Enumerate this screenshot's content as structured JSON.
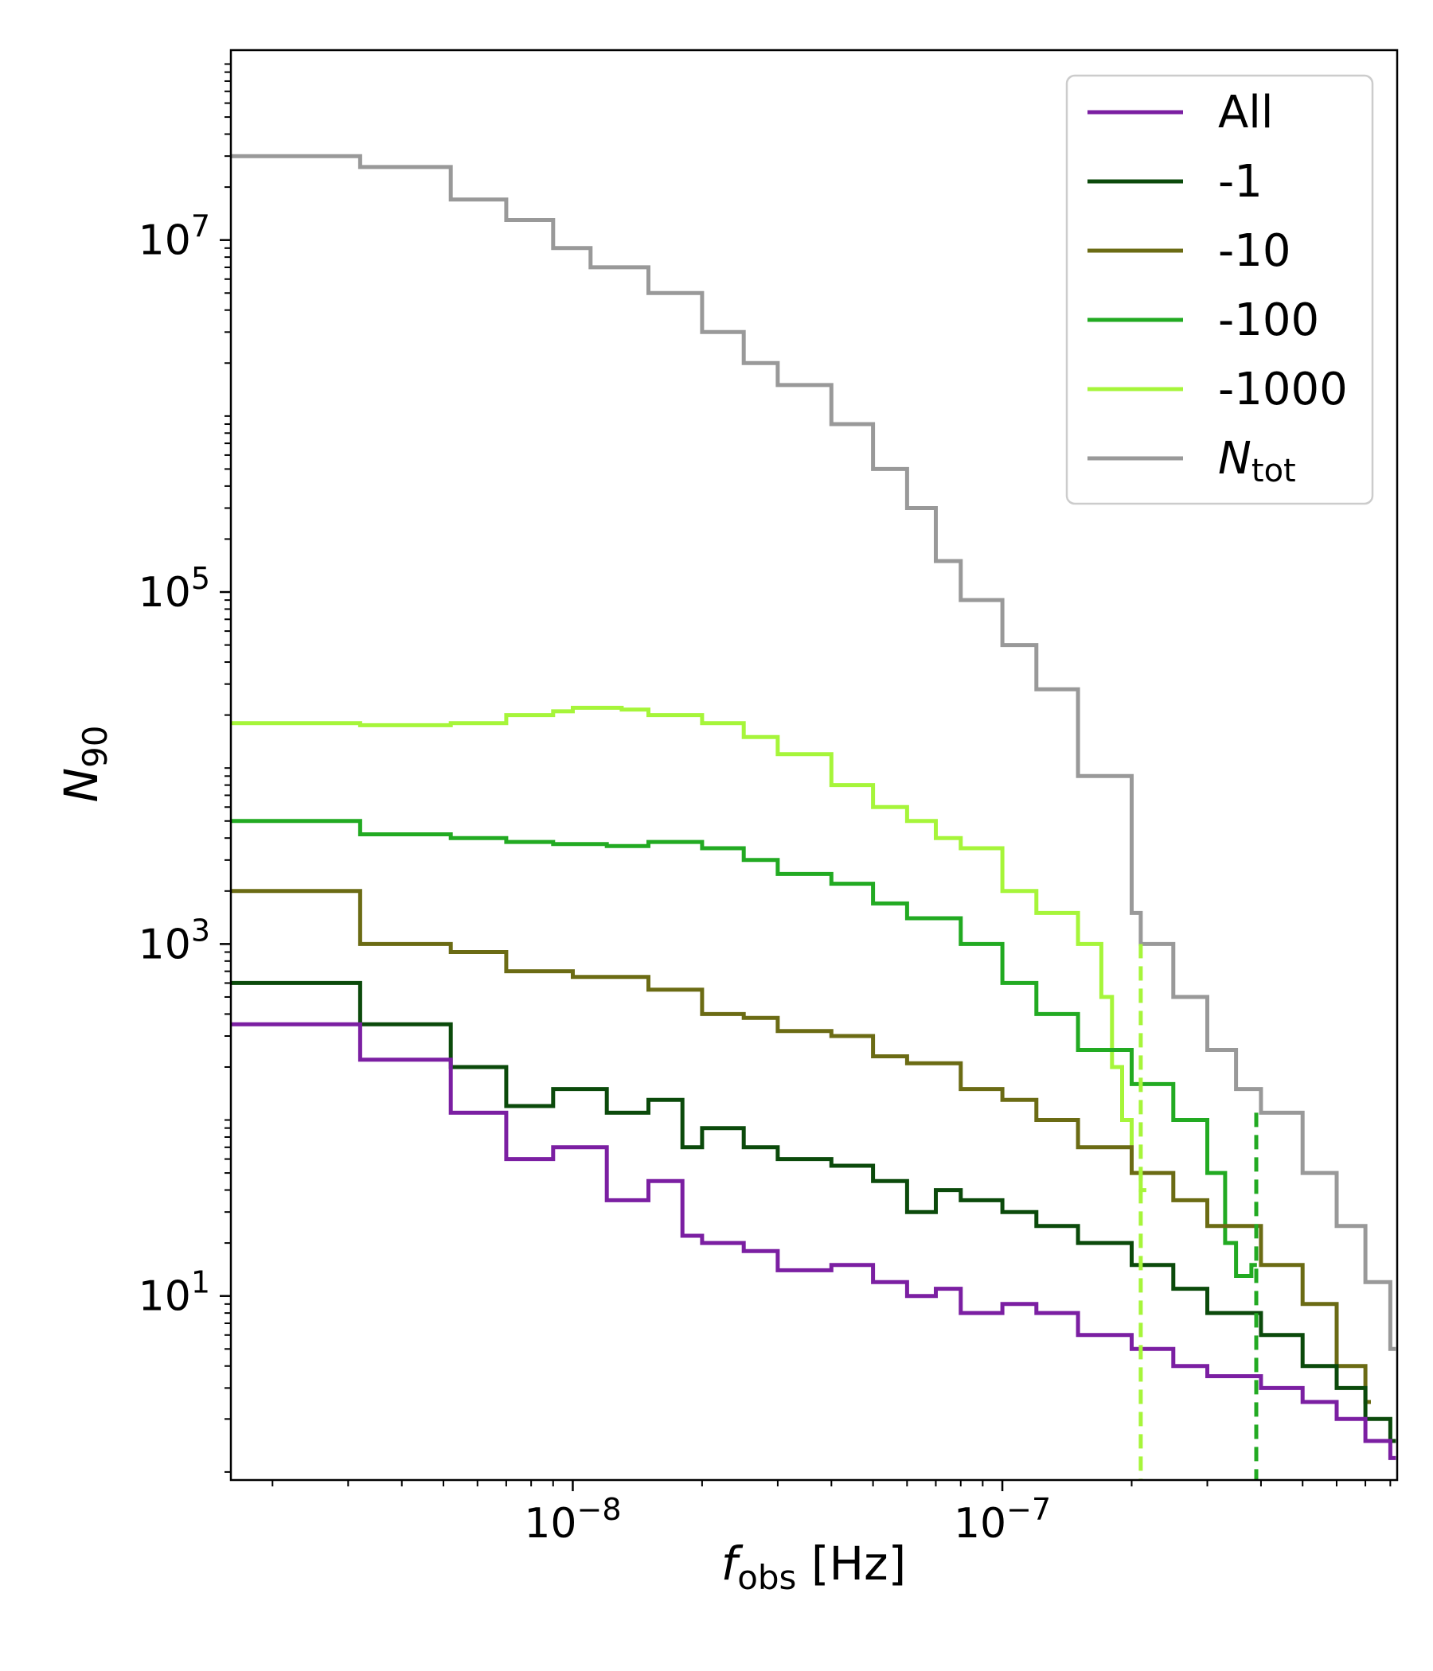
{
  "chart_data": {
    "type": "line",
    "title": "",
    "xlabel": "f",
    "xlabel_sub": "obs",
    "xlabel_unit": " [Hz]",
    "ylabel": "N",
    "ylabel_sub": "90",
    "xscale": "log",
    "yscale": "log",
    "xlim": [
      1.6e-09,
      8.3e-07
    ],
    "ylim": [
      0.9,
      120000000
    ],
    "x_ticks": [
      {
        "value": 1e-08,
        "base": "10",
        "exp": "−8"
      },
      {
        "value": 1e-07,
        "base": "10",
        "exp": "−7"
      }
    ],
    "y_ticks": [
      {
        "value": 10,
        "base": "10",
        "exp": "1"
      },
      {
        "value": 1000,
        "base": "10",
        "exp": "3"
      },
      {
        "value": 100000,
        "base": "10",
        "exp": "5"
      },
      {
        "value": 10000000,
        "base": "10",
        "exp": "7"
      }
    ],
    "grid": false,
    "legend_position": "top-right",
    "legend": [
      {
        "label": "All",
        "color": "#7b1fa2"
      },
      {
        "label": "-1",
        "color": "#0b4a0b"
      },
      {
        "label": "-10",
        "color": "#6b6b14"
      },
      {
        "label": "-100",
        "color": "#22aa22"
      },
      {
        "label": "-1000",
        "color": "#a6f53a"
      },
      {
        "label": "N",
        "label_sub": "tot",
        "color": "#999999"
      }
    ],
    "series": [
      {
        "name": "N_tot",
        "color": "#999999",
        "points": [
          [
            1.6e-09,
            30000000
          ],
          [
            3.2e-09,
            26000000
          ],
          [
            5.2e-09,
            17000000
          ],
          [
            7e-09,
            13000000
          ],
          [
            9e-09,
            9000000
          ],
          [
            1.1e-08,
            7000000
          ],
          [
            1.5e-08,
            5000000
          ],
          [
            2e-08,
            3000000
          ],
          [
            2.5e-08,
            2000000
          ],
          [
            3e-08,
            1500000
          ],
          [
            4e-08,
            900000
          ],
          [
            5e-08,
            500000
          ],
          [
            6e-08,
            300000
          ],
          [
            7e-08,
            150000
          ],
          [
            8e-08,
            90000
          ],
          [
            1e-07,
            50000
          ],
          [
            1.2e-07,
            28000
          ],
          [
            1.5e-07,
            9000
          ],
          [
            2e-07,
            1500
          ],
          [
            2.1e-07,
            1000
          ],
          [
            2.5e-07,
            500
          ],
          [
            3e-07,
            250
          ],
          [
            3.5e-07,
            150
          ],
          [
            4e-07,
            110
          ],
          [
            5e-07,
            50
          ],
          [
            6e-07,
            25
          ],
          [
            7e-07,
            12
          ],
          [
            8e-07,
            5
          ]
        ]
      },
      {
        "name": "-1000",
        "color": "#a6f53a",
        "points": [
          [
            1.6e-09,
            18000
          ],
          [
            3.2e-09,
            17500
          ],
          [
            5.2e-09,
            18000
          ],
          [
            7e-09,
            20000
          ],
          [
            9e-09,
            21000
          ],
          [
            1e-08,
            22000
          ],
          [
            1.3e-08,
            21500
          ],
          [
            1.5e-08,
            20000
          ],
          [
            2e-08,
            18000
          ],
          [
            2.5e-08,
            15000
          ],
          [
            3e-08,
            12000
          ],
          [
            4e-08,
            8000
          ],
          [
            5e-08,
            6000
          ],
          [
            6e-08,
            5000
          ],
          [
            7e-08,
            4000
          ],
          [
            8e-08,
            3500
          ],
          [
            1e-07,
            2000
          ],
          [
            1.2e-07,
            1500
          ],
          [
            1.5e-07,
            1000
          ],
          [
            1.7e-07,
            500
          ],
          [
            1.8e-07,
            200
          ],
          [
            1.9e-07,
            100
          ],
          [
            2e-07,
            50
          ],
          [
            2.1e-07,
            40
          ]
        ]
      },
      {
        "name": "-100",
        "color": "#22aa22",
        "points": [
          [
            1.6e-09,
            5000
          ],
          [
            3.2e-09,
            4200
          ],
          [
            5.2e-09,
            4000
          ],
          [
            7e-09,
            3800
          ],
          [
            9e-09,
            3700
          ],
          [
            1.2e-08,
            3600
          ],
          [
            1.5e-08,
            3800
          ],
          [
            2e-08,
            3500
          ],
          [
            2.5e-08,
            3000
          ],
          [
            3e-08,
            2500
          ],
          [
            4e-08,
            2200
          ],
          [
            5e-08,
            1700
          ],
          [
            6e-08,
            1400
          ],
          [
            8e-08,
            1000
          ],
          [
            1e-07,
            600
          ],
          [
            1.2e-07,
            400
          ],
          [
            1.5e-07,
            250
          ],
          [
            2e-07,
            160
          ],
          [
            2.5e-07,
            100
          ],
          [
            3e-07,
            50
          ],
          [
            3.3e-07,
            20
          ],
          [
            3.5e-07,
            13
          ],
          [
            3.8e-07,
            15
          ]
        ]
      },
      {
        "name": "-10",
        "color": "#6b6b14",
        "points": [
          [
            1.6e-09,
            2000
          ],
          [
            3.2e-09,
            1000
          ],
          [
            5.2e-09,
            900
          ],
          [
            7e-09,
            700
          ],
          [
            1e-08,
            650
          ],
          [
            1.5e-08,
            550
          ],
          [
            2e-08,
            400
          ],
          [
            2.5e-08,
            380
          ],
          [
            3e-08,
            320
          ],
          [
            4e-08,
            300
          ],
          [
            5e-08,
            230
          ],
          [
            6e-08,
            210
          ],
          [
            8e-08,
            150
          ],
          [
            1e-07,
            130
          ],
          [
            1.2e-07,
            100
          ],
          [
            1.5e-07,
            70
          ],
          [
            2e-07,
            50
          ],
          [
            2.5e-07,
            35
          ],
          [
            3e-07,
            25
          ],
          [
            4e-07,
            15
          ],
          [
            5e-07,
            9
          ],
          [
            6e-07,
            4
          ],
          [
            7e-07,
            2.5
          ]
        ]
      },
      {
        "name": "-1",
        "color": "#0b4a0b",
        "points": [
          [
            1.6e-09,
            600
          ],
          [
            3.2e-09,
            350
          ],
          [
            5.2e-09,
            200
          ],
          [
            7e-09,
            120
          ],
          [
            9e-09,
            150
          ],
          [
            1.2e-08,
            110
          ],
          [
            1.5e-08,
            130
          ],
          [
            1.8e-08,
            70
          ],
          [
            2e-08,
            90
          ],
          [
            2.5e-08,
            70
          ],
          [
            3e-08,
            60
          ],
          [
            4e-08,
            55
          ],
          [
            5e-08,
            45
          ],
          [
            6e-08,
            30
          ],
          [
            7e-08,
            40
          ],
          [
            8e-08,
            35
          ],
          [
            1e-07,
            30
          ],
          [
            1.2e-07,
            25
          ],
          [
            1.5e-07,
            20
          ],
          [
            2e-07,
            15
          ],
          [
            2.5e-07,
            11
          ],
          [
            3e-07,
            8
          ],
          [
            4e-07,
            6
          ],
          [
            5e-07,
            4
          ],
          [
            6e-07,
            3
          ],
          [
            7e-07,
            2
          ],
          [
            8e-07,
            1.5
          ]
        ]
      },
      {
        "name": "All",
        "color": "#7b1fa2",
        "points": [
          [
            1.6e-09,
            350
          ],
          [
            3.2e-09,
            220
          ],
          [
            5.2e-09,
            110
          ],
          [
            7e-09,
            60
          ],
          [
            9e-09,
            70
          ],
          [
            1.2e-08,
            35
          ],
          [
            1.5e-08,
            45
          ],
          [
            1.8e-08,
            22
          ],
          [
            2e-08,
            20
          ],
          [
            2.5e-08,
            18
          ],
          [
            3e-08,
            14
          ],
          [
            4e-08,
            15
          ],
          [
            5e-08,
            12
          ],
          [
            6e-08,
            10
          ],
          [
            7e-08,
            11
          ],
          [
            8e-08,
            8
          ],
          [
            1e-07,
            9
          ],
          [
            1.2e-07,
            8
          ],
          [
            1.5e-07,
            6
          ],
          [
            2e-07,
            5
          ],
          [
            2.5e-07,
            4
          ],
          [
            3e-07,
            3.5
          ],
          [
            4e-07,
            3
          ],
          [
            5e-07,
            2.5
          ],
          [
            6e-07,
            2
          ],
          [
            7e-07,
            1.5
          ],
          [
            8e-07,
            1.2
          ]
        ]
      }
    ],
    "vlines": [
      {
        "name": "-1000",
        "x": 2.1e-07,
        "y_top": 1000,
        "color": "#a6f53a"
      },
      {
        "name": "-100",
        "x": 3.9e-07,
        "y_top": 110,
        "color": "#22aa22"
      }
    ]
  }
}
